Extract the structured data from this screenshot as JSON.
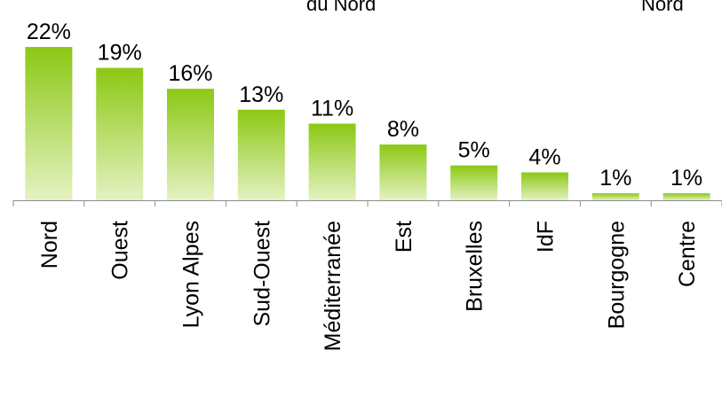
{
  "top_fragments": {
    "left": "du Nord",
    "right": "Nord"
  },
  "colors": {
    "bar_top": "#8cc814",
    "bar_bottom": "#e4f2c2",
    "axis": "#8c8c8c",
    "text": "#000000"
  },
  "chart_data": {
    "type": "bar",
    "categories": [
      "Nord",
      "Ouest",
      "Lyon Alpes",
      "Sud-Ouest",
      "Méditerranée",
      "Est",
      "Bruxelles",
      "IdF",
      "Bourgogne",
      "Centre"
    ],
    "values": [
      22,
      19,
      16,
      13,
      11,
      8,
      5,
      4,
      1,
      1
    ],
    "data_labels": [
      "22%",
      "19%",
      "16%",
      "13%",
      "11%",
      "8%",
      "5%",
      "4%",
      "1%",
      "1%"
    ],
    "value_unit": "%",
    "ylim": [
      0,
      22
    ],
    "grid": false,
    "legend": "none",
    "category_label_rotation": "vertical"
  }
}
